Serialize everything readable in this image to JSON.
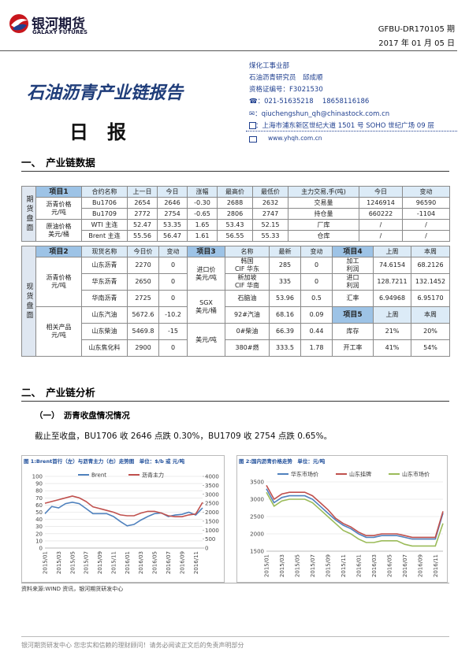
{
  "header": {
    "logo_cn": "银河期货",
    "logo_en": "GALAXY FUTURES",
    "report_id": "GFBU-DR170105 期",
    "date": "2017 年 01 月 05 日",
    "title": "石油沥青产业链报告",
    "subtitle": "日　报",
    "author": [
      "煤化工事业部",
      "石油沥青研究员　邱成顺",
      "资格证编号：F3021530",
      "☎：021-51635218　 18658116186",
      "✉：qiuchengshun_qh@chinastock.com.cn",
      "：上海市浦东新区世纪大道 1501 号 SOHO 世纪广场 09 层",
      "www.yhqh.com.cn"
    ]
  },
  "section1": "一、　产业链数据",
  "futures": {
    "label": "期货盘面",
    "header": [
      "项目1",
      "合约名称",
      "上一日",
      "今日",
      "涨幅",
      "最高价",
      "最低价",
      "主力交易,手(吨)",
      "今日",
      "变动"
    ],
    "rows": [
      [
        [
          "沥青价格",
          "元/吨"
        ],
        "Bu1706",
        "2654",
        "2646",
        "-0.30",
        "2688",
        "2632",
        "交易量",
        "1246914",
        "96590"
      ],
      [
        "Bu1709",
        "2772",
        "2754",
        "-0.65",
        "2806",
        "2747",
        "持仓量",
        "660222",
        "-1104"
      ],
      [
        [
          "原油价格",
          "美元/桶"
        ],
        "WTI 主连",
        "52.47",
        "53.35",
        "1.65",
        "53.43",
        "52.15",
        "厂库",
        "/",
        "/"
      ],
      [
        "Brent 主连",
        "55.56",
        "56.47",
        "1.61",
        "56.55",
        "55.33",
        "仓库",
        "/",
        "/"
      ]
    ]
  },
  "spot": {
    "label": "现货盘面",
    "header": [
      "项目2",
      "现货名称",
      "今日价",
      "变动",
      "项目3",
      "名称",
      "最新",
      "变动",
      "项目4",
      "上周",
      "本周"
    ],
    "rows": [
      [
        [
          "沥青价格",
          "元/吨"
        ],
        "山东沥青",
        "2270",
        "0",
        [
          "进口价",
          "美元/吨"
        ],
        [
          "韩国",
          "CIF 华东"
        ],
        "285",
        "0",
        [
          "加工",
          "利润"
        ],
        "74.6154",
        "68.2126"
      ],
      [
        "华东沥青",
        "2650",
        "0",
        [
          "新加坡",
          "CIF 华南"
        ],
        "335",
        "0",
        [
          "进口",
          "利润"
        ],
        "128.7211",
        "132.1452"
      ],
      [
        "华南沥青",
        "2725",
        "0",
        [
          "SGX",
          "美元/桶"
        ],
        "石脑油",
        "53.96",
        "0.5",
        "汇率",
        "6.94968",
        "6.95170"
      ],
      [
        [
          "相关产品",
          "元/吨"
        ],
        "山东汽油",
        "5672.6",
        "-10.2",
        "92#汽油",
        "68.16",
        "0.09",
        "项目5",
        "上周",
        "本周"
      ],
      [
        "山东柴油",
        "5469.8",
        "-15",
        "美元/吨",
        "0#柴油",
        "66.39",
        "0.44",
        "库存",
        "21%",
        "20%"
      ],
      [
        "山东焦化料",
        "2900",
        "0",
        "380#燃",
        "333.5",
        "1.78",
        "开工率",
        "41%",
        "54%"
      ]
    ]
  },
  "section2": "二、　产业链分析",
  "subsection": "（一）　沥青收盘情况情况",
  "paragraph": "截止至收盘，BU1706 收 2646 点跌 0.30%，BU1709 收 2754 点跌 0.65%。",
  "chart_data": [
    {
      "type": "line",
      "title": "图 1:Brent首行（左）与沥青主力（右）走势图　单位：$/b 或 元/吨",
      "categories": [
        "2015/01",
        null,
        "2015/03",
        null,
        "2015/05",
        null,
        "2015/07",
        null,
        "2015/09",
        null,
        "2015/11",
        null,
        "2016/01",
        null,
        "2016/03",
        null,
        "2016/05",
        null,
        "2016/07",
        null,
        "2016/09",
        null,
        "2016/11",
        null
      ],
      "series": [
        {
          "name": "Brent",
          "color": "#4f81bd",
          "values": [
            48,
            58,
            56,
            62,
            64,
            62,
            55,
            48,
            48,
            48,
            44,
            37,
            31,
            33,
            39,
            44,
            48,
            49,
            44,
            46,
            47,
            50,
            46,
            56
          ]
        },
        {
          "name": "沥青主力",
          "color": "#c0504d",
          "axis": "y2",
          "values": [
            2500,
            2600,
            2700,
            2800,
            2900,
            2800,
            2600,
            2300,
            2200,
            2100,
            2000,
            1850,
            1800,
            1800,
            1950,
            2050,
            2050,
            1950,
            1800,
            1750,
            1750,
            1850,
            1900,
            2550
          ]
        }
      ],
      "ylim": [
        0,
        100
      ],
      "yticks": [
        0,
        10,
        20,
        30,
        40,
        50,
        60,
        70,
        80,
        90,
        100
      ],
      "y2lim": [
        0,
        4000
      ],
      "y2ticks": [
        0,
        500,
        1000,
        1500,
        2000,
        2500,
        3000,
        3500,
        4000
      ],
      "grid": true,
      "legend": "top"
    },
    {
      "type": "line",
      "title": "图 2:国内沥青价格走势　单位：元/吨",
      "categories": [
        "2015/01",
        null,
        "2015/03",
        null,
        "2015/05",
        null,
        "2015/07",
        null,
        "2015/09",
        null,
        "2015/11",
        null,
        "2016/01",
        null,
        "2016/03",
        null,
        "2016/05",
        null,
        "2016/07",
        null,
        "2016/09",
        null,
        "2016/11",
        null
      ],
      "series": [
        {
          "name": "华东市场价",
          "color": "#4f81bd",
          "values": [
            3300,
            2900,
            3050,
            3100,
            3100,
            3100,
            3000,
            2800,
            2600,
            2400,
            2250,
            2150,
            2000,
            1900,
            1900,
            1950,
            1950,
            1950,
            1900,
            1850,
            1850,
            1850,
            1850,
            2600
          ]
        },
        {
          "name": "山东挂牌",
          "color": "#c0504d",
          "values": [
            3400,
            3000,
            3150,
            3200,
            3200,
            3200,
            3100,
            2900,
            2700,
            2450,
            2300,
            2200,
            2050,
            1950,
            1950,
            2000,
            2000,
            2000,
            1950,
            1900,
            1900,
            1900,
            1900,
            2650
          ]
        },
        {
          "name": "山东市场价",
          "color": "#9bbb59",
          "values": [
            3200,
            2800,
            2950,
            3000,
            3000,
            3000,
            2900,
            2700,
            2500,
            2300,
            2100,
            2000,
            1850,
            1750,
            1750,
            1800,
            1800,
            1800,
            1700,
            1650,
            1650,
            1650,
            1650,
            2300
          ]
        }
      ],
      "ylim": [
        1500,
        3500
      ],
      "yticks": [
        1500,
        2000,
        2500,
        3000,
        3500
      ],
      "grid": true,
      "legend": "top"
    }
  ],
  "source": "资料来源:WIND 资讯，银河期货研发中心",
  "footer": "银河期货研发中心 您忠实和信赖的理财顾问！请务必阅读正文后的免责声明部分"
}
